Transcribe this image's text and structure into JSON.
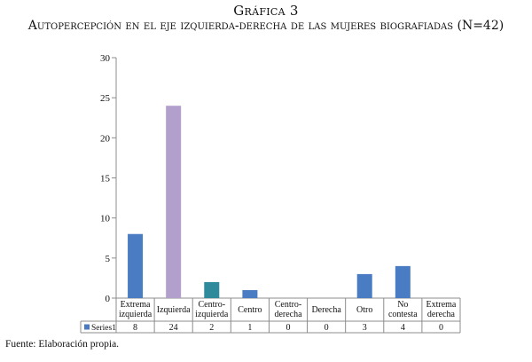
{
  "chart_title": "Gráfica 3",
  "chart_subtitle": "Autopercepción en el eje izquierda-derecha de las mujeres biografiadas (N=42)",
  "source_note": "Fuente: Elaboración propia.",
  "chart_data": {
    "type": "bar",
    "categories": [
      [
        "Extrema",
        "izquierda"
      ],
      [
        "Izquierda"
      ],
      [
        "Centro-",
        "izquierda"
      ],
      [
        "Centro"
      ],
      [
        "Centro-",
        "derecha"
      ],
      [
        "Derecha"
      ],
      [
        "Otro"
      ],
      [
        "No",
        "contesta"
      ],
      [
        "Extrema",
        "derecha"
      ]
    ],
    "series": [
      {
        "name": "Series1",
        "values": [
          8,
          24,
          2,
          1,
          0,
          0,
          3,
          4,
          0
        ]
      }
    ],
    "bar_colors": [
      "#4a7cc4",
      "#b39fcb",
      "#2f8a9c",
      "#4a7cc4",
      "#4a7cc4",
      "#4a7cc4",
      "#4a7cc4",
      "#4a7cc4",
      "#4a7cc4"
    ],
    "legend_color": "#4a7cc4",
    "ylim": [
      0,
      30
    ],
    "yticks": [
      0,
      5,
      10,
      15,
      20,
      25,
      30
    ],
    "grid": false,
    "data_table": true
  }
}
